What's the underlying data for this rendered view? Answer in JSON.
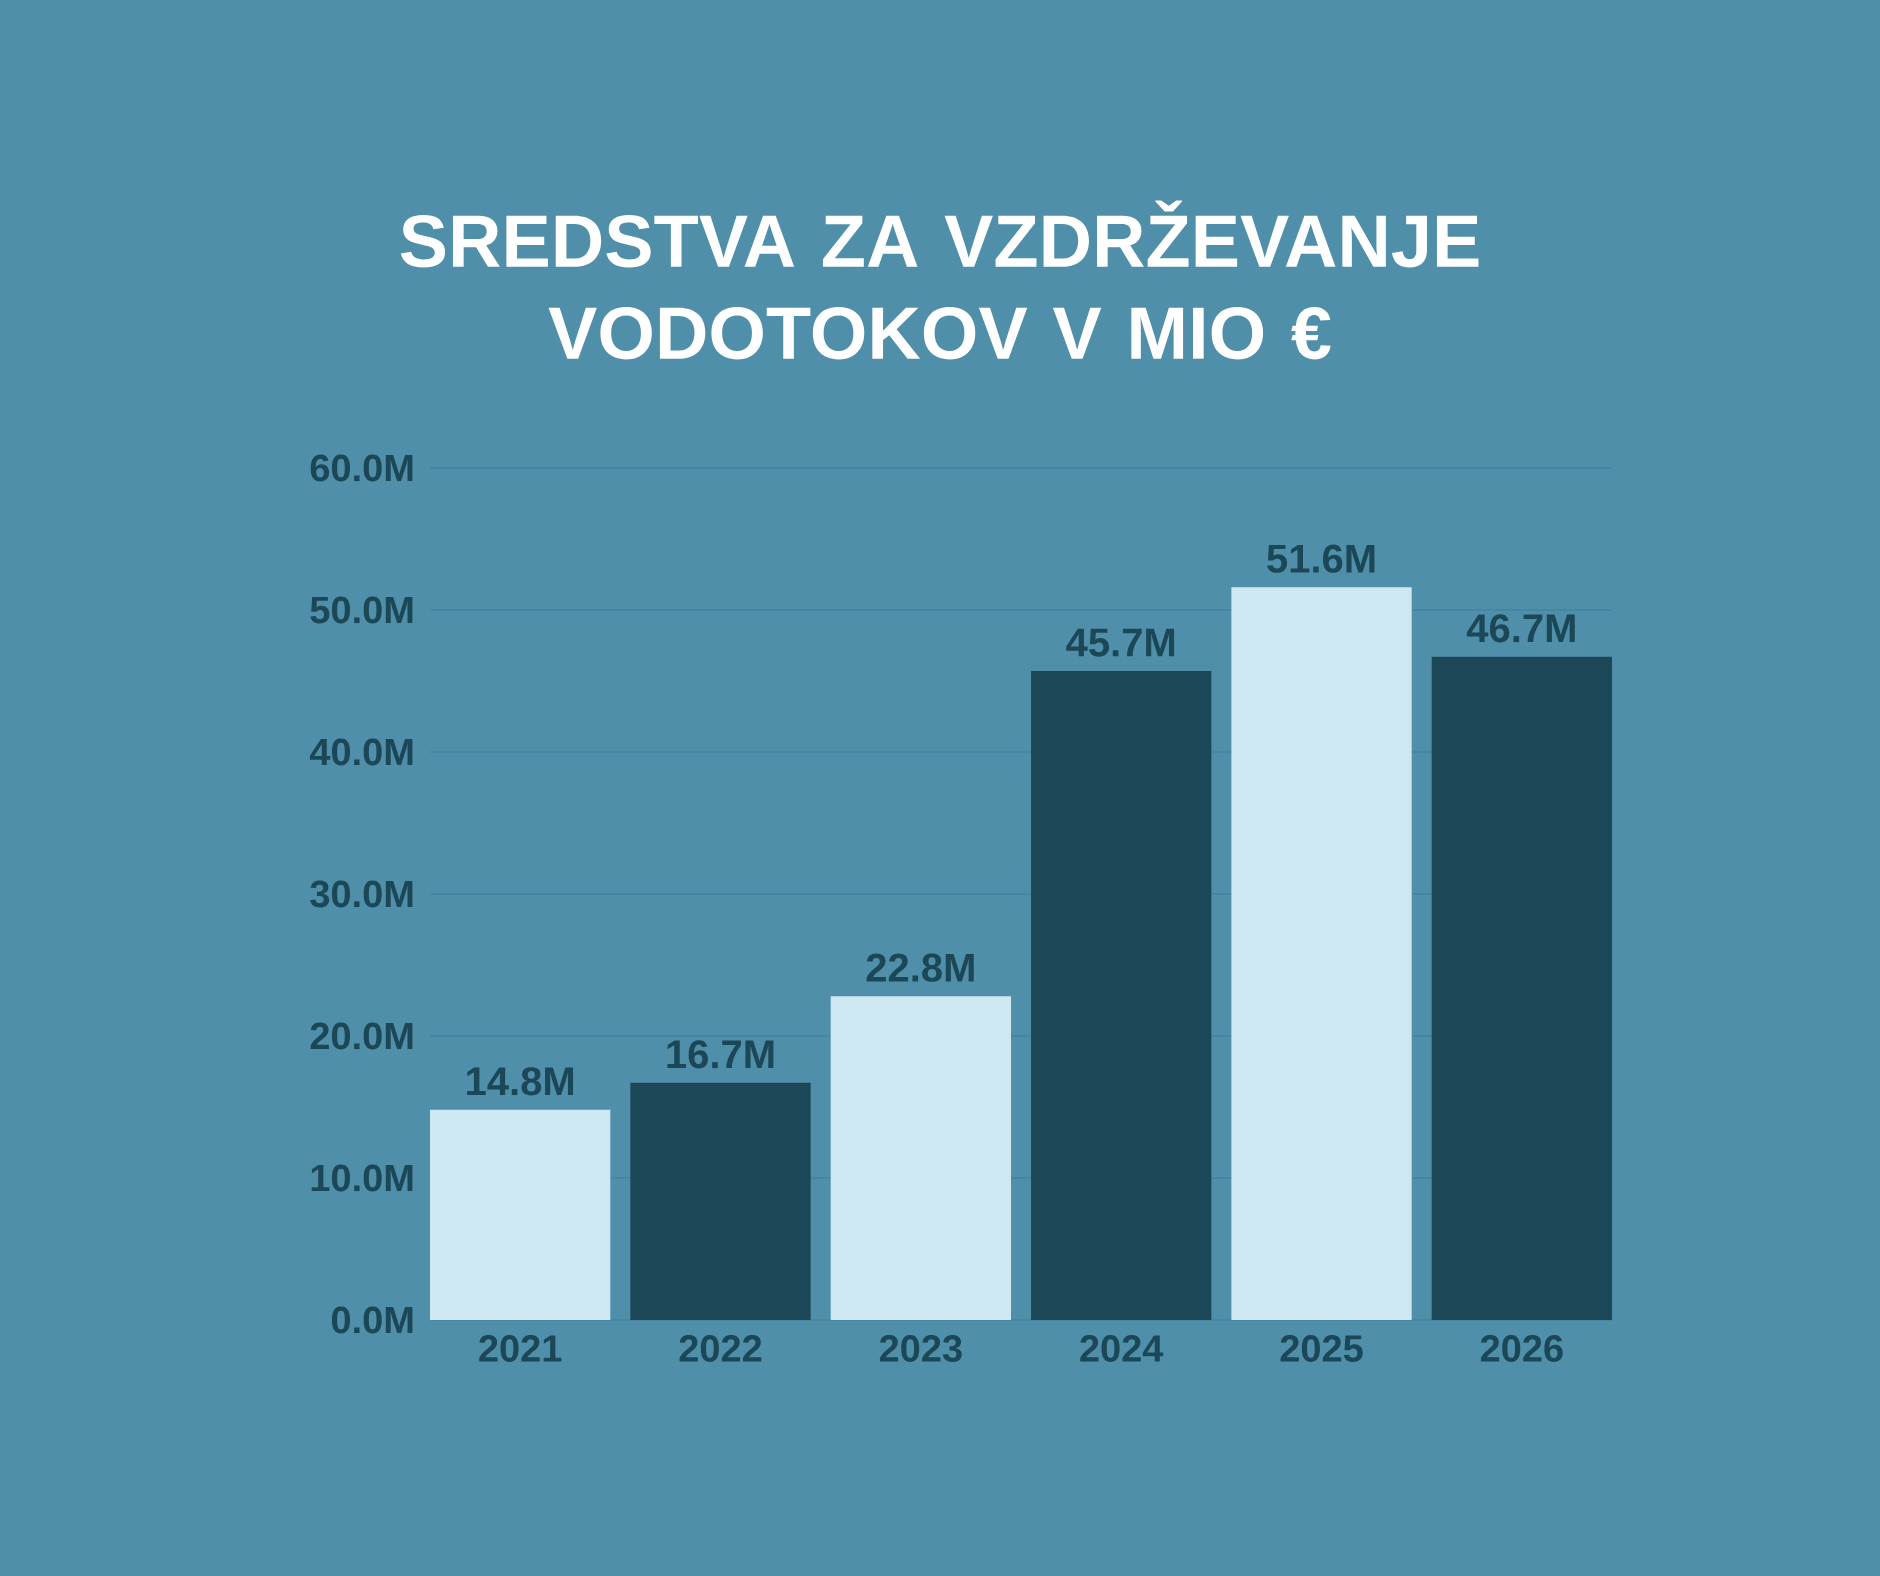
{
  "chart_data": {
    "type": "bar",
    "title": "SREDSTVA ZA VZDRŽEVANJE VODOTOKOV V MIO €",
    "categories": [
      "2021",
      "2022",
      "2023",
      "2024",
      "2025",
      "2026"
    ],
    "values": [
      14.8,
      16.7,
      22.8,
      45.7,
      51.6,
      46.7
    ],
    "colors": [
      "#cde8f1",
      "#1c4757",
      "#cde8f1",
      "#1c4757",
      "#cde8f1",
      "#1c4757"
    ],
    "value_labels": [
      "14.8M",
      "16.7M",
      "22.8M",
      "45.7M",
      "51.6M",
      "46.7M"
    ],
    "ylim": [
      0,
      60
    ],
    "yticks": [
      {
        "value": 0,
        "label": "0.0M"
      },
      {
        "value": 10,
        "label": "10.0M"
      },
      {
        "value": 20,
        "label": "20.0M"
      },
      {
        "value": 30,
        "label": "30.0M"
      },
      {
        "value": 40,
        "label": "40.0M"
      },
      {
        "value": 50,
        "label": "50.0M"
      },
      {
        "value": 60,
        "label": "60.0M"
      }
    ],
    "grid": "y"
  }
}
